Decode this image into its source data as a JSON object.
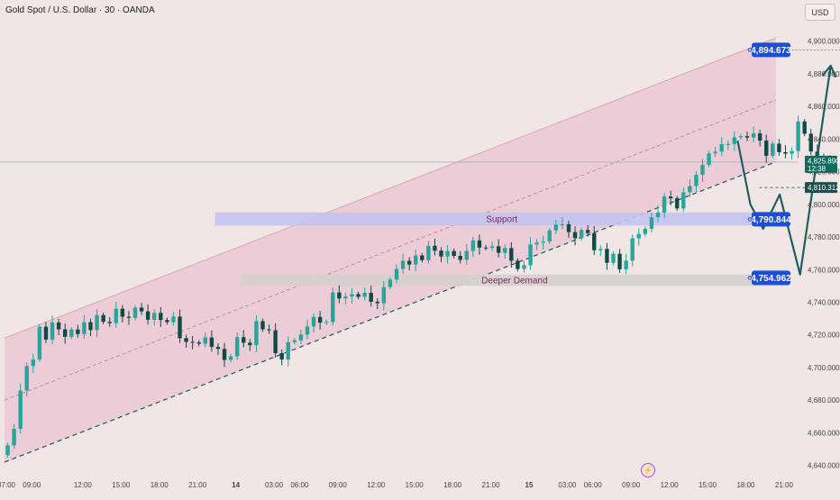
{
  "header": {
    "title": "Gold Spot / U.S. Dollar · 30 · OANDA",
    "currency_button": "USD"
  },
  "icons": {
    "event": "lightning-icon"
  },
  "colors": {
    "background": "#f0e6e6",
    "channel_fill": "#eac7d3",
    "bull": "#26a69a",
    "bear": "#0f4a45",
    "arrow": "#1d5f63",
    "label_blue": "#1b4fd6",
    "support_zone": "#c5c3f0",
    "demand_zone": "#d6cfd0"
  },
  "chart_data": {
    "type": "candlestick",
    "title": "Gold Spot / U.S. Dollar · 30 · OANDA",
    "currency": "USD",
    "ylim": [
      4637,
      4912
    ],
    "y_ticks": [
      "4,640.000",
      "4,660.000",
      "4,680.000",
      "4,700.000",
      "4,720.000",
      "4,740.000",
      "4,760.000",
      "4,780.000",
      "4,800.000",
      "4,820.000",
      "4,840.000",
      "4,860.000",
      "4,880.000",
      "4,900.000"
    ],
    "x_ticks": [
      "07:00",
      "09:00",
      "12:00",
      "15:00",
      "18:00",
      "21:00",
      "14",
      "03:00",
      "06:00",
      "09:00",
      "12:00",
      "15:00",
      "18:00",
      "21:00",
      "15",
      "03:00",
      "06:00",
      "09:00",
      "12:00",
      "15:00",
      "18:00",
      "21:00"
    ],
    "x_tick_pos": [
      0,
      2,
      6,
      9,
      12,
      15,
      18,
      21,
      23,
      26,
      29,
      32,
      35,
      38,
      41,
      44,
      46,
      49,
      52,
      55,
      58,
      61
    ],
    "hours_visible": 61.5,
    "candle_step_hours": 0.5,
    "closes": [
      4652.3,
      4662.4,
      4685.9,
      4700.9,
      4704.9,
      4725,
      4717.1,
      4727.6,
      4723.4,
      4718.8,
      4723.3,
      4720.5,
      4727.8,
      4722.9,
      4732.1,
      4728,
      4727.2,
      4736,
      4731.1,
      4730.4,
      4736.7,
      4734.4,
      4729.3,
      4733.5,
      4729.1,
      4727.8,
      4731.2,
      4718,
      4715.7,
      4715.4,
      4714.6,
      4718.4,
      4712.6,
      4711.4,
      4704.6,
      4706.8,
      4718.6,
      4715.2,
      4713.7,
      4728.4,
      4723.4,
      4722.8,
      4708.8,
      4704.9,
      4715.5,
      4716.6,
      4720.2,
      4725.1,
      4731,
      4727.5,
      4727.9,
      4746,
      4742.3,
      4743.5,
      4745,
      4743.3,
      4745.8,
      4740.3,
      4739.4,
      4749.3,
      4753.9,
      4760.4,
      4765.4,
      4763.1,
      4768.7,
      4765.8,
      4774.6,
      4771.6,
      4768,
      4771.4,
      4768.4,
      4766,
      4771.4,
      4777.9,
      4773.5,
      4773.3,
      4774.3,
      4770.3,
      4773.2,
      4765.4,
      4760.4,
      4762.7,
      4775.4,
      4776.6,
      4777.2,
      4784,
      4787.6,
      4787.8,
      4783,
      4779.2,
      4784.3,
      4782.4,
      4771.9,
      4772.7,
      4764.2,
      4769.7,
      4760.2,
      4765.5,
      4779.2,
      4781.8,
      4785,
      4792.1,
      4795,
      4804.8,
      4803.7,
      4797.5,
      4807.4,
      4811.2,
      4818.1,
      4824.2,
      4831.2,
      4832.3,
      4836.9,
      4837,
      4841.1,
      4841.8,
      4840.9,
      4843.5,
      4839.1,
      4829.8,
      4837.2,
      4832,
      4831.1,
      4832.7,
      4850.8,
      4843.3,
      4832.4,
      4828.9,
      4826.5,
      4825.9
    ],
    "last_price": "4,825.890",
    "countdown": "12:38",
    "annotations": {
      "target": "4,894.673",
      "level": "4,810.312",
      "support_label": "Support",
      "support_price": "4,790.844",
      "demand_label": "Deeper Demand",
      "demand_price": "4,754.962"
    },
    "channel": {
      "upper": [
        [
          0,
          4718
        ],
        [
          60.5,
          4902
        ]
      ],
      "mid": [
        [
          0,
          4680
        ],
        [
          60.5,
          4864
        ]
      ],
      "lower": [
        [
          0,
          4642
        ],
        [
          60.5,
          4826
        ]
      ]
    },
    "zones": {
      "support": [
        16.5,
        61.5,
        4795,
        4787
      ],
      "demand": [
        18.5,
        61.5,
        4757,
        4750
      ]
    },
    "projection": [
      [
        57.5,
        4839
      ],
      [
        58.5,
        4800
      ],
      [
        59.5,
        4785
      ],
      [
        60.8,
        4806
      ],
      [
        62.4,
        4757
      ],
      [
        64.8,
        4885
      ]
    ],
    "target_line_x": [
      61.2,
      66.5
    ],
    "level_line_x": [
      59.2,
      66.5
    ]
  }
}
